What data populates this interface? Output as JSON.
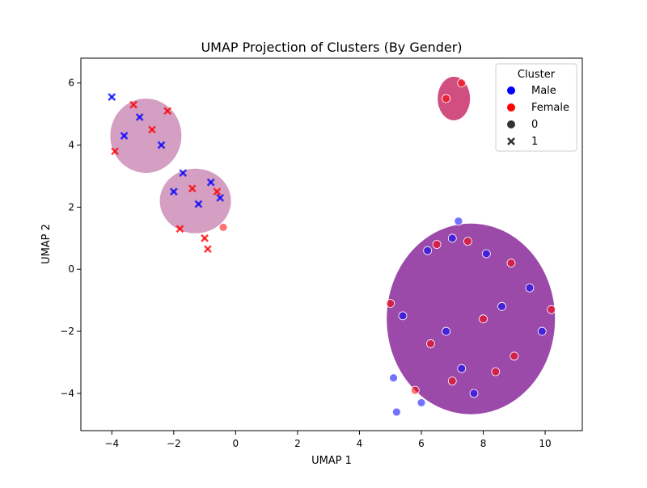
{
  "chart_data": {
    "type": "scatter",
    "title": "UMAP Projection of Clusters (By Gender)",
    "xlabel": "UMAP 1",
    "ylabel": "UMAP 2",
    "xlim": [
      -5.0,
      11.2
    ],
    "ylim": [
      -5.2,
      6.8
    ],
    "xticks": [
      -4,
      -2,
      0,
      2,
      4,
      6,
      8,
      10
    ],
    "yticks": [
      -4,
      -2,
      0,
      2,
      4,
      6
    ],
    "grid": false,
    "legend": {
      "title": "Cluster",
      "placement": "top-right",
      "hue_entries": [
        {
          "label": "Male",
          "color": "#0000ff"
        },
        {
          "label": "Female",
          "color": "#ff0000"
        }
      ],
      "style_entries": [
        {
          "label": "0",
          "marker": "circle"
        },
        {
          "label": "1",
          "marker": "x"
        }
      ]
    },
    "series": [
      {
        "hue": "Male",
        "color": "#0000ff",
        "style": "0",
        "marker": "circle",
        "x": [
          6.2,
          7.0,
          8.1,
          9.5,
          5.4,
          6.8,
          8.6,
          5.1,
          7.3,
          9.9,
          6.0,
          7.7,
          5.2,
          7.2
        ],
        "y": [
          0.6,
          1.0,
          0.5,
          -0.6,
          -1.5,
          -2.0,
          -1.2,
          -3.5,
          -3.2,
          -2.0,
          -4.3,
          -4.0,
          -4.6,
          1.55
        ]
      },
      {
        "hue": "Female",
        "color": "#ff0000",
        "style": "0",
        "marker": "circle",
        "x": [
          6.5,
          7.5,
          8.9,
          10.2,
          5.0,
          6.3,
          8.0,
          9.0,
          5.8,
          7.0,
          8.4,
          6.8,
          7.3,
          -0.4
        ],
        "y": [
          0.8,
          0.9,
          0.2,
          -1.3,
          -1.1,
          -2.4,
          -1.6,
          -2.8,
          -3.9,
          -3.6,
          -3.3,
          5.5,
          6.0,
          1.35
        ]
      },
      {
        "hue": "Male",
        "color": "#0000ff",
        "style": "1",
        "marker": "x",
        "x": [
          -4.0,
          -3.6,
          -3.1,
          -2.4,
          -2.0,
          -1.7,
          -1.2,
          -0.8,
          -0.5
        ],
        "y": [
          5.55,
          4.3,
          4.9,
          4.0,
          2.5,
          3.1,
          2.1,
          2.8,
          2.3
        ]
      },
      {
        "hue": "Female",
        "color": "#ff0000",
        "style": "1",
        "marker": "x",
        "x": [
          -3.9,
          -3.3,
          -2.7,
          -2.2,
          -1.8,
          -1.4,
          -1.0,
          -0.6,
          -0.9
        ],
        "y": [
          3.8,
          5.3,
          4.5,
          5.1,
          1.3,
          2.6,
          1.0,
          2.5,
          0.65
        ]
      }
    ]
  }
}
